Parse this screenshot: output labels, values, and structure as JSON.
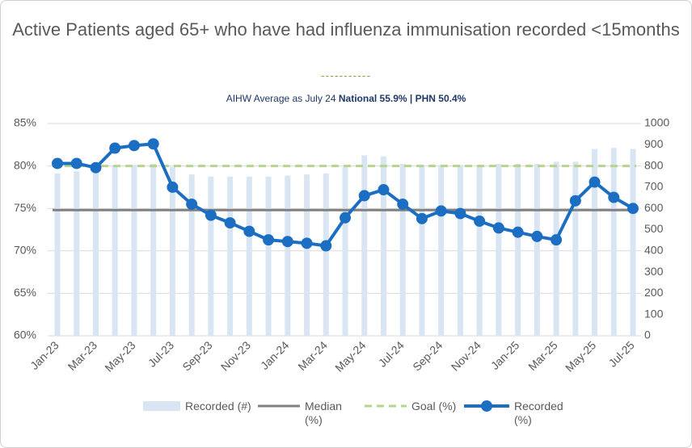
{
  "chart_data": {
    "type": "combo",
    "title": "Active Patients aged 65+ who have had influenza immunisation recorded <15months",
    "title_rule": "-----------",
    "subtitle": "AIHW Average as July 24",
    "subtitle_bold": "National 55.9% | PHN 50.4%",
    "categories": [
      "Jan-23",
      null,
      "Mar-23",
      null,
      "May-23",
      null,
      "Jul-23",
      null,
      "Sep-23",
      null,
      "Nov-23",
      null,
      "Jan-24",
      null,
      "Mar-24",
      null,
      "May-24",
      null,
      "Jul-24",
      null,
      "Sep-24",
      null,
      "Nov-24",
      null,
      "Jan-25",
      null,
      "Mar-25",
      null,
      "May-25",
      null,
      "Jul-25"
    ],
    "ylim": [
      60,
      85
    ],
    "yticks": [
      {
        "value": 60,
        "label": "60%"
      },
      {
        "value": 65,
        "label": "65%"
      },
      {
        "value": 70,
        "label": "70%"
      },
      {
        "value": 75,
        "label": "75%"
      },
      {
        "value": 80,
        "label": "80%"
      },
      {
        "value": 85,
        "label": "85%"
      }
    ],
    "y2lim": [
      0,
      1000
    ],
    "y2ticks": [
      0,
      100,
      200,
      300,
      400,
      500,
      600,
      700,
      800,
      900,
      1000
    ],
    "grid": true,
    "legend": "bottom",
    "series": [
      {
        "name": "Recorded (#)",
        "kind": "bar",
        "axis": "y2",
        "color": "#dae5f3",
        "values": [
          765,
          775,
          775,
          800,
          805,
          810,
          795,
          760,
          750,
          750,
          750,
          750,
          755,
          760,
          765,
          795,
          850,
          845,
          810,
          805,
          805,
          805,
          805,
          810,
          810,
          810,
          820,
          820,
          880,
          885,
          880
        ]
      },
      {
        "name": "Median (%)",
        "kind": "hline",
        "color": "#808080",
        "value": 74.8
      },
      {
        "name": "Goal (%)",
        "kind": "hline",
        "dashed": true,
        "color": "#b7d48e",
        "value": 80
      },
      {
        "name": "Recorded (%)",
        "kind": "line",
        "color": "#1b6ec2",
        "values": [
          80.3,
          80.3,
          79.8,
          82.1,
          82.4,
          82.6,
          77.5,
          75.5,
          74.2,
          73.3,
          72.3,
          71.3,
          71.1,
          70.9,
          70.6,
          73.9,
          76.5,
          77.2,
          75.5,
          73.8,
          74.7,
          74.4,
          73.5,
          72.7,
          72.2,
          71.7,
          71.3,
          75.9,
          78.1,
          76.3,
          75.0
        ]
      }
    ]
  }
}
